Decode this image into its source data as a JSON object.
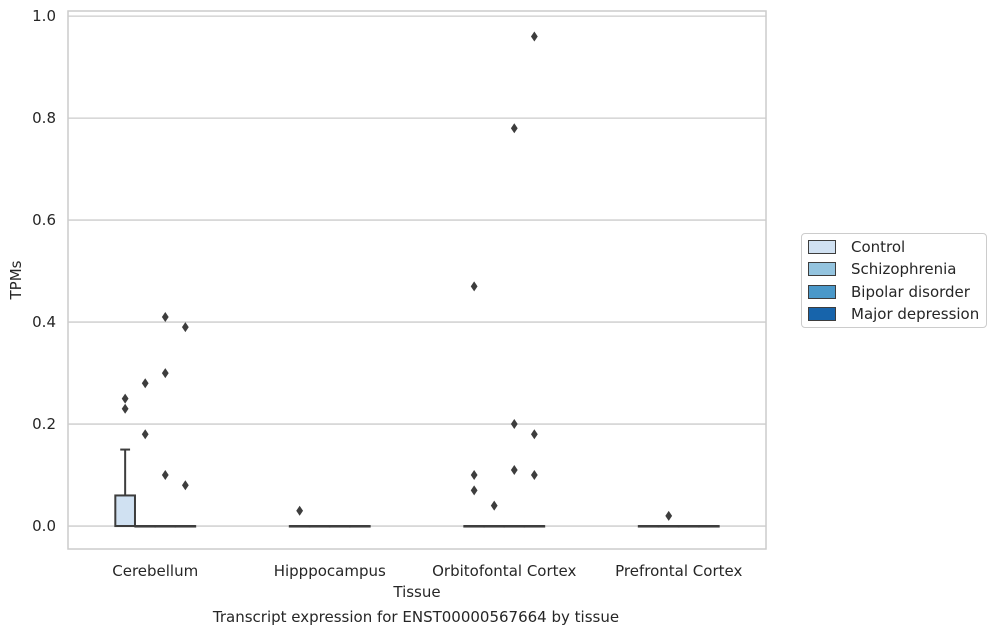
{
  "chart_data": {
    "type": "box",
    "ylabel": "TPMs",
    "xlabel": "Tissue",
    "caption": "Transcript expression for ENST00000567664 by tissue",
    "categories": [
      "Cerebellum",
      "Hipppocampus",
      "Orbitofontal Cortex",
      "Prefrontal Cortex"
    ],
    "yticks": [
      "0.0",
      "0.2",
      "0.4",
      "0.6",
      "0.8",
      "1.0"
    ],
    "ylim": [
      -0.045,
      1.01
    ],
    "grid": true,
    "legend_position": "right",
    "series": [
      {
        "name": "Control",
        "color": "#d0e1f2",
        "boxes": [
          {
            "category": "Cerebellum",
            "q1": 0.0,
            "median": 0.0,
            "q3": 0.06,
            "whisker_low": 0.0,
            "whisker_high": 0.15,
            "outliers": [
              0.25,
              0.23
            ]
          },
          {
            "category": "Hipppocampus",
            "q1": 0.0,
            "median": 0.0,
            "q3": 0.0,
            "whisker_low": 0.0,
            "whisker_high": 0.0,
            "outliers": [
              0.03
            ]
          },
          {
            "category": "Orbitofontal Cortex",
            "q1": 0.0,
            "median": 0.0,
            "q3": 0.0,
            "whisker_low": 0.0,
            "whisker_high": 0.0,
            "outliers": [
              0.47,
              0.1,
              0.07
            ]
          },
          {
            "category": "Prefrontal Cortex",
            "q1": 0.0,
            "median": 0.0,
            "q3": 0.0,
            "whisker_low": 0.0,
            "whisker_high": 0.0,
            "outliers": []
          }
        ]
      },
      {
        "name": "Schizophrenia",
        "color": "#94c4df",
        "boxes": [
          {
            "category": "Cerebellum",
            "q1": 0.0,
            "median": 0.0,
            "q3": 0.0,
            "whisker_low": 0.0,
            "whisker_high": 0.0,
            "outliers": [
              0.28,
              0.18
            ]
          },
          {
            "category": "Hipppocampus",
            "q1": 0.0,
            "median": 0.0,
            "q3": 0.0,
            "whisker_low": 0.0,
            "whisker_high": 0.0,
            "outliers": []
          },
          {
            "category": "Orbitofontal Cortex",
            "q1": 0.0,
            "median": 0.0,
            "q3": 0.0,
            "whisker_low": 0.0,
            "whisker_high": 0.0,
            "outliers": [
              0.04
            ]
          },
          {
            "category": "Prefrontal Cortex",
            "q1": 0.0,
            "median": 0.0,
            "q3": 0.0,
            "whisker_low": 0.0,
            "whisker_high": 0.0,
            "outliers": [
              0.02
            ]
          }
        ]
      },
      {
        "name": "Bipolar disorder",
        "color": "#4a98c9",
        "boxes": [
          {
            "category": "Cerebellum",
            "q1": 0.0,
            "median": 0.0,
            "q3": 0.0,
            "whisker_low": 0.0,
            "whisker_high": 0.0,
            "outliers": [
              0.41,
              0.3,
              0.1
            ]
          },
          {
            "category": "Hipppocampus",
            "q1": 0.0,
            "median": 0.0,
            "q3": 0.0,
            "whisker_low": 0.0,
            "whisker_high": 0.0,
            "outliers": []
          },
          {
            "category": "Orbitofontal Cortex",
            "q1": 0.0,
            "median": 0.0,
            "q3": 0.0,
            "whisker_low": 0.0,
            "whisker_high": 0.0,
            "outliers": [
              0.78,
              0.2,
              0.11
            ]
          },
          {
            "category": "Prefrontal Cortex",
            "q1": 0.0,
            "median": 0.0,
            "q3": 0.0,
            "whisker_low": 0.0,
            "whisker_high": 0.0,
            "outliers": []
          }
        ]
      },
      {
        "name": "Major depression",
        "color": "#1764ab",
        "boxes": [
          {
            "category": "Cerebellum",
            "q1": 0.0,
            "median": 0.0,
            "q3": 0.0,
            "whisker_low": 0.0,
            "whisker_high": 0.0,
            "outliers": [
              0.39,
              0.08
            ]
          },
          {
            "category": "Hipppocampus",
            "q1": 0.0,
            "median": 0.0,
            "q3": 0.0,
            "whisker_low": 0.0,
            "whisker_high": 0.0,
            "outliers": []
          },
          {
            "category": "Orbitofontal Cortex",
            "q1": 0.0,
            "median": 0.0,
            "q3": 0.0,
            "whisker_low": 0.0,
            "whisker_high": 0.0,
            "outliers": [
              0.96,
              0.18,
              0.1
            ]
          },
          {
            "category": "Prefrontal Cortex",
            "q1": 0.0,
            "median": 0.0,
            "q3": 0.0,
            "whisker_low": 0.0,
            "whisker_high": 0.0,
            "outliers": []
          }
        ]
      }
    ]
  }
}
